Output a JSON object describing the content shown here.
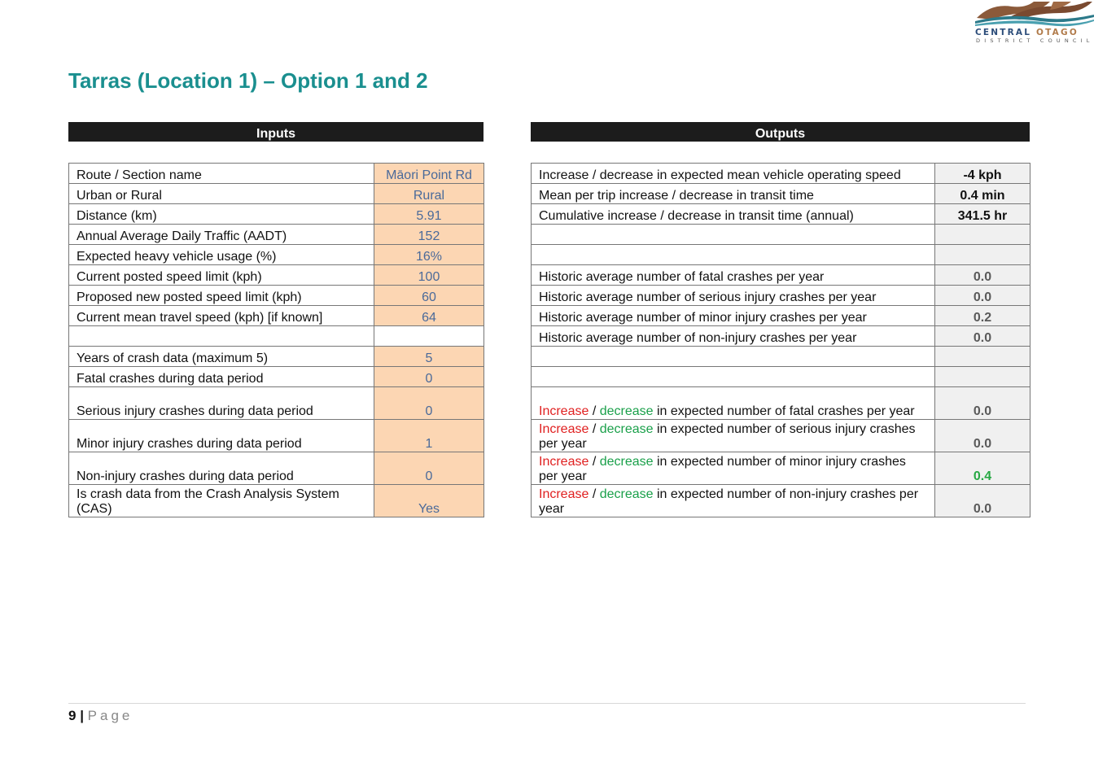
{
  "logo": {
    "line1a": "CENTRAL",
    "line1b": "OTAGO",
    "line2": "DISTRICT COUNCIL"
  },
  "title": "Tarras (Location 1) – Option 1 and 2",
  "inputs": {
    "header": "Inputs",
    "rows": [
      {
        "label": "Route / Section name",
        "value": "Māori Point Rd"
      },
      {
        "label": "Urban or Rural",
        "value": "Rural"
      },
      {
        "label": "Distance (km)",
        "value": "5.91"
      },
      {
        "label": "Annual Average Daily Traffic (AADT)",
        "value": "152"
      },
      {
        "label": "Expected heavy vehicle usage (%)",
        "value": "16%"
      },
      {
        "label": "Current posted speed limit (kph)",
        "value": "100"
      },
      {
        "label": "Proposed new posted speed limit (kph)",
        "value": "60"
      },
      {
        "label": "Current mean travel speed (kph) [if known]",
        "value": "64"
      },
      {
        "label": "",
        "value": ""
      },
      {
        "label": "Years of crash data (maximum 5)",
        "value": "5"
      },
      {
        "label": "Fatal crashes during data period",
        "value": "0"
      },
      {
        "label": "Serious injury crashes during data period",
        "value": "0"
      },
      {
        "label": "Minor injury crashes during data period",
        "value": "1"
      },
      {
        "label": "Non-injury crashes during data period",
        "value": "0"
      },
      {
        "label": "Is crash data from the Crash Analysis System (CAS)",
        "value": "Yes"
      }
    ]
  },
  "outputs": {
    "header": "Outputs",
    "rows": [
      {
        "label": "Increase / decrease in expected mean vehicle operating speed",
        "value": "-4 kph"
      },
      {
        "label": "Mean per trip increase / decrease in transit time",
        "value": "0.4 min"
      },
      {
        "label": "Cumulative increase / decrease in transit time (annual)",
        "value": "341.5 hr"
      },
      {
        "label": "",
        "value": ""
      },
      {
        "label": "",
        "value": ""
      },
      {
        "label": "Historic average number of fatal crashes per year",
        "value": "0.0"
      },
      {
        "label": "Historic average number of serious injury crashes per year",
        "value": "0.0"
      },
      {
        "label": "Historic average number of minor injury crashes per year",
        "value": "0.2"
      },
      {
        "label": "Historic average number of non-injury crashes per year",
        "value": "0.0"
      },
      {
        "label": "",
        "value": ""
      },
      {
        "label": "",
        "value": ""
      }
    ],
    "change_rows": [
      {
        "inc": "Increase",
        "sep": " / ",
        "dec": "decrease",
        "rest": " in expected number of fatal crashes per year",
        "value": "0.0"
      },
      {
        "inc": "Increase",
        "sep": " / ",
        "dec": "decrease",
        "rest": " in expected number of serious injury crashes per year",
        "value": "0.0"
      },
      {
        "inc": "Increase",
        "sep": " / ",
        "dec": "decrease",
        "rest": " in expected number of minor injury crashes per year",
        "value": "0.4"
      },
      {
        "inc": "Increase",
        "sep": " / ",
        "dec": "decrease",
        "rest": " in expected number of non-injury crashes per year",
        "value": "0.0"
      }
    ]
  },
  "footer": {
    "page_number": "9",
    "separator": " | ",
    "page_label": "Page"
  },
  "colors": {
    "title": "#1a8f8f",
    "input_fill": "#fcd6b3",
    "increase": "#e02020",
    "decrease": "#1aa04a",
    "positive_value": "#27a844"
  }
}
